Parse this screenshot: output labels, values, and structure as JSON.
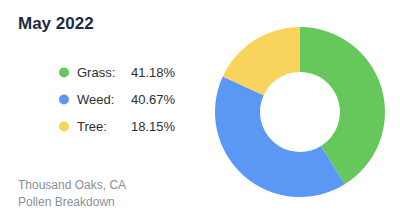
{
  "chart_data": {
    "type": "pie",
    "title": "May 2022",
    "categories": [
      "Grass:",
      "Weed:",
      "Tree:"
    ],
    "values": [
      41.18,
      40.67,
      18.15
    ],
    "value_labels": [
      "41.18%",
      "40.67%",
      "18.15%"
    ],
    "colors": [
      "#66c75a",
      "#5b97f5",
      "#f9d45c"
    ],
    "legend": "left",
    "annotations": [
      "Thousand Oaks, CA",
      "Pollen Breakdown"
    ]
  }
}
